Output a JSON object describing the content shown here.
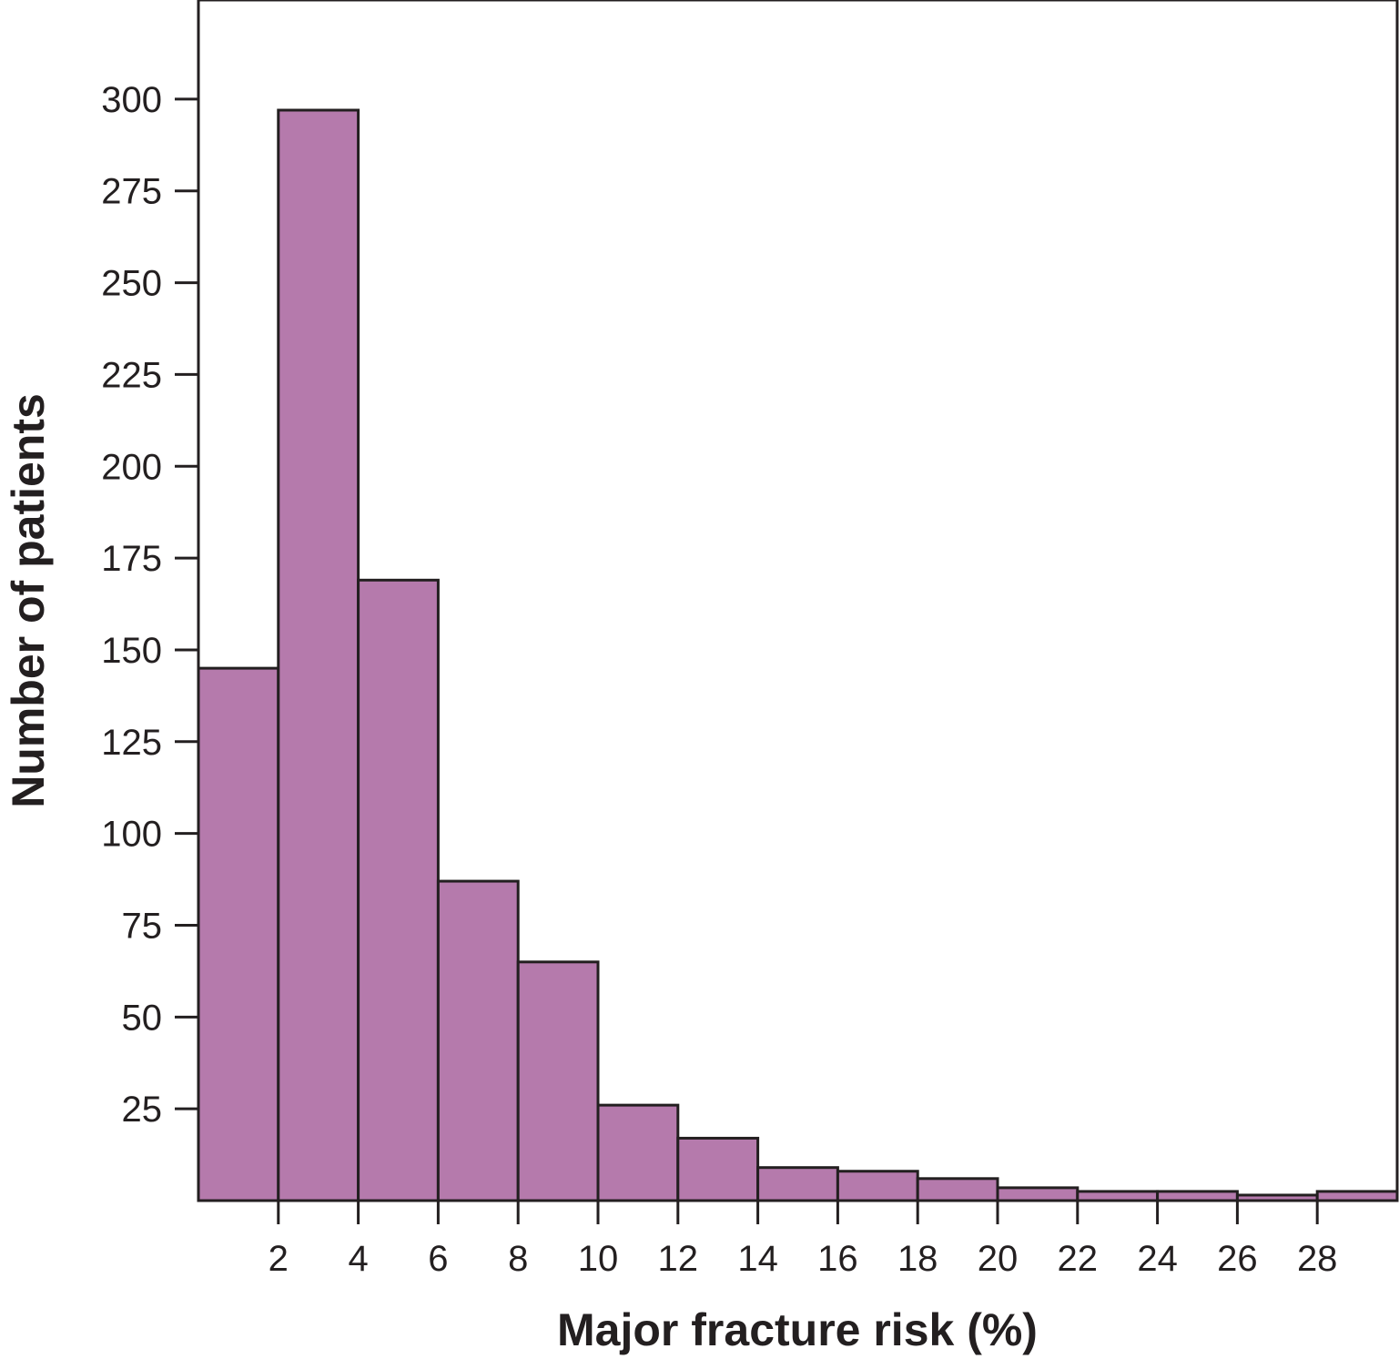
{
  "chart_data": {
    "type": "bar",
    "title": "",
    "xlabel": "Major fracture risk (%)",
    "ylabel": "Number of patients",
    "bin_edges": [
      0,
      2,
      4,
      6,
      8,
      10,
      12,
      14,
      16,
      18,
      20,
      22,
      24,
      26,
      28,
      30
    ],
    "values": [
      145,
      297,
      169,
      87,
      65,
      26,
      17,
      9,
      8,
      6,
      3.5,
      2.5,
      2.5,
      1.5,
      2.5
    ],
    "x_ticks": [
      2,
      4,
      6,
      8,
      10,
      12,
      14,
      16,
      18,
      20,
      22,
      24,
      26,
      28
    ],
    "y_ticks": [
      25,
      50,
      75,
      100,
      125,
      150,
      175,
      200,
      225,
      250,
      275,
      300
    ],
    "xlim": [
      0,
      30
    ],
    "ylim": [
      0,
      327
    ],
    "grid": false,
    "legend": "none",
    "colors": {
      "bar_fill": "#b57aac",
      "bar_stroke": "#231f20",
      "axis": "#231f20"
    }
  }
}
